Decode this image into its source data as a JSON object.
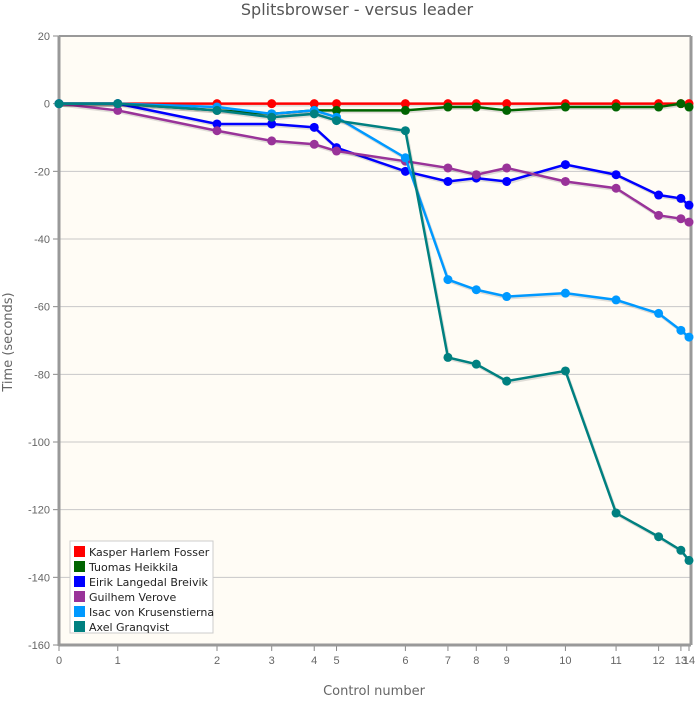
{
  "chart_data": {
    "type": "line",
    "title": "Splitsbrowser - versus leader",
    "xlabel": "Control number",
    "ylabel": "Time (seconds)",
    "ylim": [
      -160,
      20
    ],
    "yticks": [
      20,
      0,
      -20,
      -40,
      -60,
      -80,
      -100,
      -120,
      -140,
      -160
    ],
    "x_tick_labels": [
      "0",
      "1",
      "2",
      "3",
      "4",
      "5",
      "6",
      "7",
      "8",
      "9",
      "10",
      "11",
      "12",
      "13",
      "14"
    ],
    "x_positions_cumulative": [
      0,
      1.45,
      3.9,
      5.25,
      6.3,
      6.85,
      8.55,
      9.6,
      10.3,
      11.05,
      12.5,
      13.75,
      14.8,
      15.35,
      15.55
    ],
    "grid": true,
    "legend_position": "bottom-left",
    "plot_background": "#fffcf5",
    "series": [
      {
        "name": "Kasper Harlem Fosser",
        "color": "#ff0000",
        "values": [
          0,
          0,
          0,
          0,
          0,
          0,
          0,
          0,
          0,
          0,
          0,
          0,
          0,
          0,
          0
        ]
      },
      {
        "name": "Tuomas Heikkila",
        "color": "#006400",
        "values": [
          0,
          0,
          -2,
          -3,
          -2,
          -2,
          -2,
          -1,
          -1,
          -2,
          -1,
          -1,
          -1,
          0,
          -1
        ]
      },
      {
        "name": "Eirik Langedal Breivik",
        "color": "#0000ff",
        "values": [
          0,
          0,
          -6,
          -6,
          -7,
          -13,
          -20,
          -23,
          -22,
          -23,
          -18,
          -21,
          -27,
          -28,
          -30
        ]
      },
      {
        "name": "Guilhem Verove",
        "color": "#993399",
        "values": [
          0,
          -2,
          -8,
          -11,
          -12,
          -14,
          -17,
          -19,
          -21,
          -19,
          -23,
          -25,
          -33,
          -34,
          -35
        ]
      },
      {
        "name": "Isac von Krusenstierna",
        "color": "#0099ff",
        "values": [
          0,
          0,
          -1,
          -3,
          -2,
          -4,
          -16,
          -52,
          -55,
          -57,
          -56,
          -58,
          -62,
          -67,
          -69
        ]
      },
      {
        "name": "Axel Granqvist",
        "color": "#008080",
        "values": [
          0,
          0,
          -2,
          -4,
          -3,
          -5,
          -8,
          -75,
          -77,
          -82,
          -79,
          -121,
          -128,
          -132,
          -135
        ]
      }
    ]
  }
}
